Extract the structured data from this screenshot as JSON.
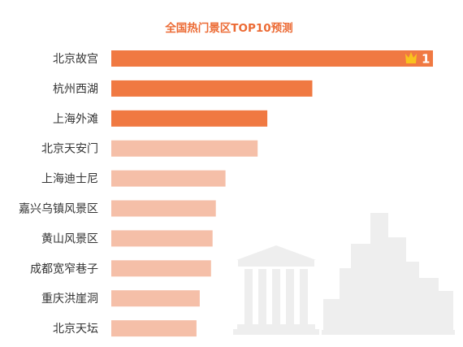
{
  "chart_data": {
    "type": "bar",
    "orientation": "horizontal",
    "title": "全国热门景区TOP10预测",
    "categories": [
      "北京故宫",
      "杭州西湖",
      "上海外滩",
      "北京天安门",
      "上海迪士尼",
      "嘉兴乌镇风景区",
      "黄山风景区",
      "成都宽窄巷子",
      "重庆洪崖洞",
      "北京天坛"
    ],
    "values": [
      100,
      62.5,
      48.5,
      45.5,
      35.5,
      32.5,
      31.5,
      31,
      27.5,
      26.5
    ],
    "xlim": [
      0,
      100
    ],
    "axes_visible": false,
    "grid": false,
    "legend": "none",
    "highlight_top_n": 3,
    "top_bar_label": "1",
    "top_bar_icon": "crown-icon",
    "colors": {
      "title": "#EC6B35",
      "highlight": "#F07942",
      "normal": "#F5BFA8",
      "crown": "#F9C21D",
      "label": "#333333",
      "background_illustration": "#EEEEEE"
    }
  },
  "decorations": {
    "background_icons": [
      "classical-building-icon",
      "city-skyline-icon"
    ]
  }
}
